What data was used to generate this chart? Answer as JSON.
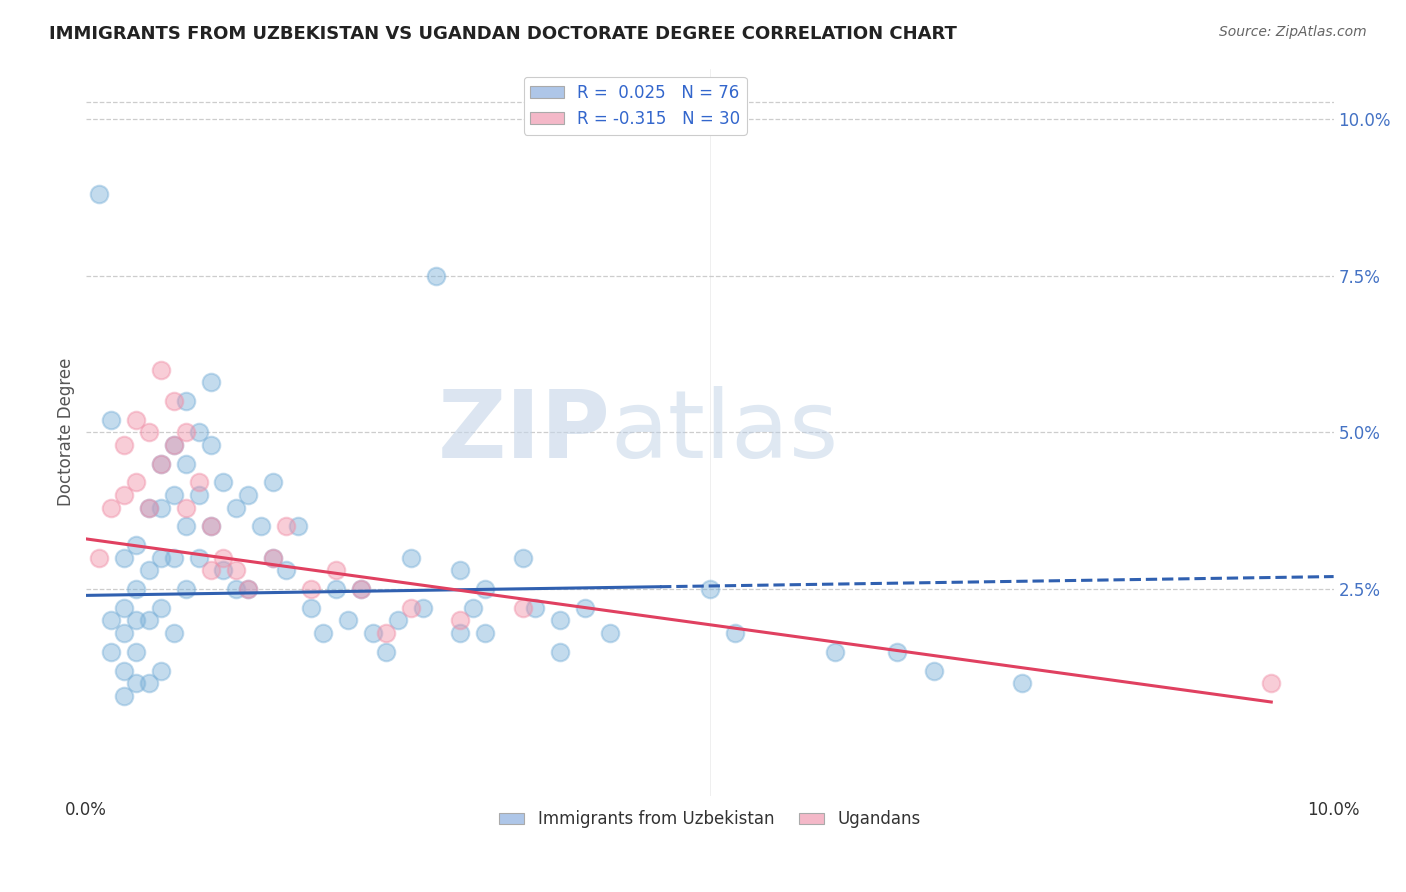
{
  "title": "IMMIGRANTS FROM UZBEKISTAN VS UGANDAN DOCTORATE DEGREE CORRELATION CHART",
  "source": "Source: ZipAtlas.com",
  "ylabel": "Doctorate Degree",
  "ylabel_right_labels": [
    "10.0%",
    "7.5%",
    "5.0%",
    "2.5%"
  ],
  "ylabel_right_positions": [
    0.1,
    0.075,
    0.05,
    0.025
  ],
  "legend_label1": "R =  0.025   N = 76",
  "legend_label2": "R = -0.315   N = 30",
  "legend1_color": "#aec6e8",
  "legend2_color": "#f4b8c8",
  "watermark_zip": "ZIP",
  "watermark_atlas": "atlas",
  "xmin": 0.0,
  "xmax": 0.1,
  "ymin": -0.008,
  "ymax": 0.108,
  "background_color": "#ffffff",
  "grid_color": "#c8c8c8",
  "uzbek_color": "#7ab0d8",
  "ugandan_color": "#f090a8",
  "uzbek_line_color": "#3060b0",
  "ugandan_line_color": "#e04060",
  "uzbek_scatter_x": [
    0.001,
    0.002,
    0.002,
    0.002,
    0.003,
    0.003,
    0.003,
    0.003,
    0.003,
    0.004,
    0.004,
    0.004,
    0.004,
    0.004,
    0.005,
    0.005,
    0.005,
    0.005,
    0.006,
    0.006,
    0.006,
    0.006,
    0.006,
    0.007,
    0.007,
    0.007,
    0.007,
    0.008,
    0.008,
    0.008,
    0.008,
    0.009,
    0.009,
    0.009,
    0.01,
    0.01,
    0.01,
    0.011,
    0.011,
    0.012,
    0.012,
    0.013,
    0.013,
    0.014,
    0.015,
    0.015,
    0.016,
    0.017,
    0.018,
    0.019,
    0.02,
    0.021,
    0.022,
    0.023,
    0.024,
    0.025,
    0.026,
    0.027,
    0.028,
    0.03,
    0.03,
    0.031,
    0.032,
    0.032,
    0.035,
    0.036,
    0.038,
    0.038,
    0.04,
    0.042,
    0.05,
    0.052,
    0.06,
    0.065,
    0.068,
    0.075
  ],
  "uzbek_scatter_y": [
    0.088,
    0.052,
    0.02,
    0.015,
    0.03,
    0.022,
    0.018,
    0.012,
    0.008,
    0.032,
    0.025,
    0.02,
    0.015,
    0.01,
    0.038,
    0.028,
    0.02,
    0.01,
    0.045,
    0.038,
    0.03,
    0.022,
    0.012,
    0.048,
    0.04,
    0.03,
    0.018,
    0.055,
    0.045,
    0.035,
    0.025,
    0.05,
    0.04,
    0.03,
    0.058,
    0.048,
    0.035,
    0.042,
    0.028,
    0.038,
    0.025,
    0.04,
    0.025,
    0.035,
    0.042,
    0.03,
    0.028,
    0.035,
    0.022,
    0.018,
    0.025,
    0.02,
    0.025,
    0.018,
    0.015,
    0.02,
    0.03,
    0.022,
    0.075,
    0.028,
    0.018,
    0.022,
    0.025,
    0.018,
    0.03,
    0.022,
    0.02,
    0.015,
    0.022,
    0.018,
    0.025,
    0.018,
    0.015,
    0.015,
    0.012,
    0.01
  ],
  "ugandan_scatter_x": [
    0.001,
    0.002,
    0.003,
    0.003,
    0.004,
    0.004,
    0.005,
    0.005,
    0.006,
    0.006,
    0.007,
    0.007,
    0.008,
    0.008,
    0.009,
    0.01,
    0.01,
    0.011,
    0.012,
    0.013,
    0.015,
    0.016,
    0.018,
    0.02,
    0.022,
    0.024,
    0.026,
    0.03,
    0.035,
    0.095
  ],
  "ugandan_scatter_y": [
    0.03,
    0.038,
    0.048,
    0.04,
    0.052,
    0.042,
    0.05,
    0.038,
    0.06,
    0.045,
    0.055,
    0.048,
    0.05,
    0.038,
    0.042,
    0.035,
    0.028,
    0.03,
    0.028,
    0.025,
    0.03,
    0.035,
    0.025,
    0.028,
    0.025,
    0.018,
    0.022,
    0.02,
    0.022,
    0.01
  ],
  "uzbek_trend_x": [
    0.0,
    0.046,
    0.046,
    0.1
  ],
  "uzbek_trend_style": [
    "-",
    "-",
    "--",
    "--"
  ],
  "ugandan_trend_x": [
    0.0,
    0.095
  ],
  "ugandan_trend_y": [
    0.033,
    0.007
  ],
  "xtick_positions": [
    0.0,
    0.05,
    0.1
  ],
  "xtick_labels": [
    "0.0%",
    "",
    "10.0%"
  ]
}
